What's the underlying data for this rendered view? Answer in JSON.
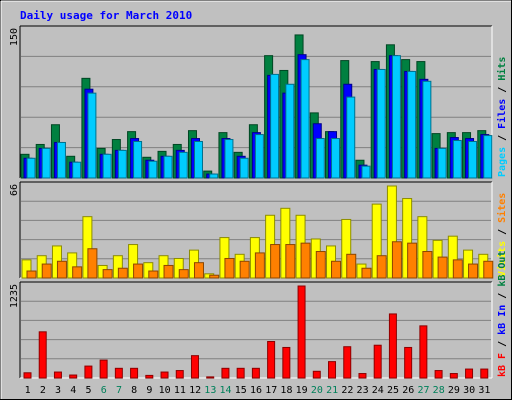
{
  "chart_data": {
    "type": "bar",
    "title": "Daily usage for March 2010",
    "days": [
      "1",
      "2",
      "3",
      "4",
      "5",
      "6",
      "7",
      "8",
      "9",
      "10",
      "11",
      "12",
      "13",
      "14",
      "15",
      "16",
      "17",
      "18",
      "19",
      "20",
      "21",
      "22",
      "23",
      "24",
      "25",
      "26",
      "27",
      "28",
      "29",
      "30",
      "31"
    ],
    "weekend_days": [
      "6",
      "7",
      "13",
      "14",
      "20",
      "21",
      "27",
      "28"
    ],
    "panels": [
      {
        "name": "pages-files-hits",
        "ymax": 150,
        "ymax_label": "150",
        "side_label": [
          {
            "text": "Pages",
            "color": "#00ccff"
          },
          {
            "text": " / ",
            "color": "#000000"
          },
          {
            "text": "Files",
            "color": "#0000ff"
          },
          {
            "text": " / ",
            "color": "#000000"
          },
          {
            "text": "Hits",
            "color": "#008040"
          }
        ],
        "series": [
          {
            "name": "Hits",
            "color": "#008040",
            "values": [
              24,
              34,
              54,
              22,
              101,
              30,
              39,
              47,
              21,
              27,
              34,
              48,
              7,
              46,
              26,
              54,
              124,
              109,
              145,
              66,
              47,
              119,
              18,
              118,
              135,
              120,
              118,
              45,
              46,
              46,
              48
            ]
          },
          {
            "name": "Files",
            "color": "#0000ff",
            "values": [
              20,
              30,
              36,
              16,
              90,
              24,
              28,
              40,
              18,
              22,
              28,
              40,
              4,
              40,
              22,
              46,
              104,
              86,
              125,
              55,
              47,
              95,
              13,
              110,
              124,
              108,
              100,
              30,
              41,
              40,
              44
            ]
          },
          {
            "name": "Pages",
            "color": "#00ccff",
            "values": [
              20,
              30,
              36,
              16,
              86,
              24,
              28,
              37,
              17,
              22,
              26,
              37,
              4,
              39,
              20,
              44,
              105,
              95,
              120,
              40,
              40,
              82,
              12,
              110,
              124,
              108,
              98,
              30,
              38,
              37,
              43
            ]
          }
        ]
      },
      {
        "name": "visits-sites",
        "ymax": 66,
        "ymax_label": "66",
        "side_label": [
          {
            "text": "Visits",
            "color": "#ffff00"
          },
          {
            "text": " / ",
            "color": "#000000"
          },
          {
            "text": "Sites",
            "color": "#ff8000"
          }
        ],
        "series": [
          {
            "name": "Visits",
            "color": "#ffff00",
            "values": [
              13,
              16,
              23,
              18,
              44,
              9,
              16,
              24,
              11,
              16,
              14,
              20,
              3,
              29,
              17,
              29,
              45,
              50,
              45,
              28,
              23,
              42,
              10,
              53,
              66,
              57,
              44,
              27,
              30,
              20,
              17
            ]
          },
          {
            "name": "Sites",
            "color": "#ff8000",
            "values": [
              5,
              10,
              12,
              8,
              21,
              6,
              7,
              10,
              5,
              9,
              6,
              11,
              2,
              14,
              12,
              18,
              24,
              24,
              25,
              19,
              12,
              17,
              7,
              16,
              26,
              25,
              19,
              15,
              13,
              10,
              12
            ]
          }
        ]
      },
      {
        "name": "kbf-kbin-kbout",
        "ymax": 1235,
        "ymax_label": "1235",
        "side_label": [
          {
            "text": "kB F",
            "color": "#ff0000"
          },
          {
            "text": " / ",
            "color": "#000000"
          },
          {
            "text": "kB In",
            "color": "#0000ff"
          },
          {
            "text": " / ",
            "color": "#000000"
          },
          {
            "text": "kB Out",
            "color": "#008040"
          }
        ],
        "series": [
          {
            "name": "kB F",
            "color": "#ff0000",
            "values": [
              70,
              620,
              80,
              40,
              160,
              240,
              130,
              130,
              35,
              80,
              100,
              300,
              15,
              130,
              130,
              130,
              490,
              410,
              1235,
              90,
              220,
              420,
              60,
              440,
              860,
              410,
              700,
              100,
              60,
              120,
              120
            ]
          }
        ]
      }
    ]
  }
}
